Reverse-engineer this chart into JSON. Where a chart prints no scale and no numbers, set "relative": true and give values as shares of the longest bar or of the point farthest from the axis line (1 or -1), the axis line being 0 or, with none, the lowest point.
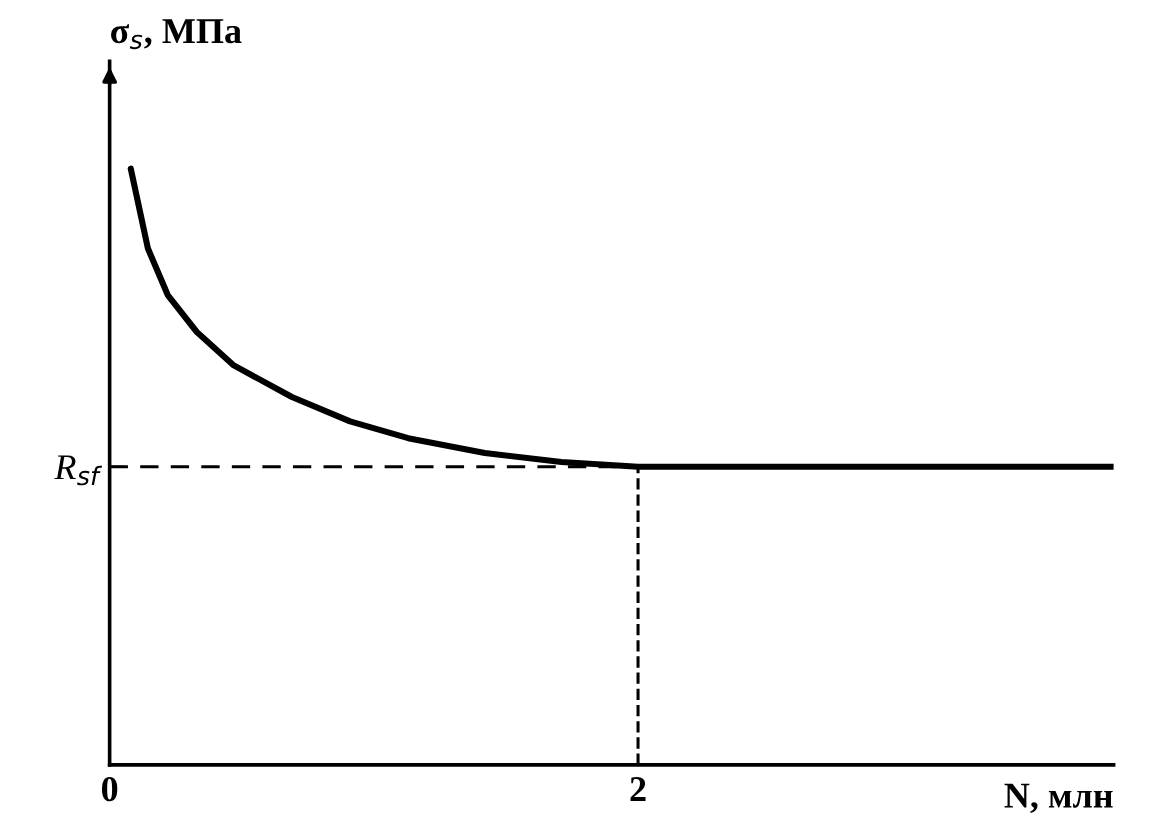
{
  "chart_data": {
    "type": "line",
    "xlabel": "N, млн",
    "ylabel": "σ$_{s}$, МПа",
    "relative": true,
    "x": [
      0.08,
      0.145,
      0.22,
      0.33,
      0.47,
      0.69,
      0.91,
      1.13,
      1.42,
      1.71,
      2.0,
      3.8
    ],
    "series": [
      {
        "color": "#000000",
        "values": [
          1.0,
          0.866,
          0.788,
          0.726,
          0.67,
          0.617,
          0.576,
          0.548,
          0.523,
          0.508,
          0.5,
          0.5
        ]
      }
    ],
    "xlim": [
      0,
      3.8
    ],
    "xticks": [
      0,
      2
    ],
    "ref_lines": [
      {
        "axis": "y",
        "value": 0.5,
        "label": "R$_{sf}$",
        "color": "#000000",
        "line_style": "dashed"
      },
      {
        "axis": "x",
        "value": 2,
        "color": "#000000",
        "line_style": "dashed"
      }
    ],
    "grid": false,
    "marker": "none",
    "line_style": "solid"
  }
}
